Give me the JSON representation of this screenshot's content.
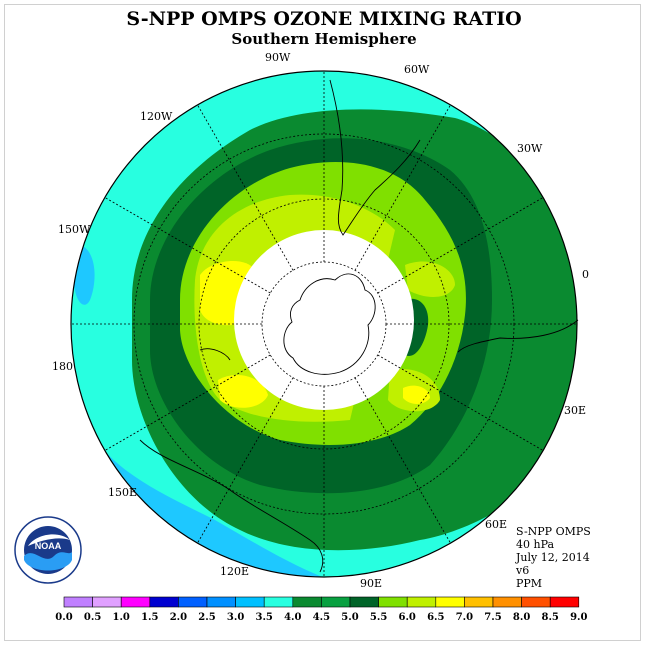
{
  "title": "S-NPP OMPS OZONE MIXING RATIO",
  "subtitle": "Southern Hemisphere",
  "longitude_labels": [
    {
      "id": "90w",
      "text": "90W"
    },
    {
      "id": "60w",
      "text": "60W"
    },
    {
      "id": "30w",
      "text": "30W"
    },
    {
      "id": "0",
      "text": "0"
    },
    {
      "id": "30e",
      "text": "30E"
    },
    {
      "id": "60e",
      "text": "60E"
    },
    {
      "id": "90e",
      "text": "90E"
    },
    {
      "id": "120e",
      "text": "120E"
    },
    {
      "id": "150e",
      "text": "150E"
    },
    {
      "id": "180",
      "text": "180"
    },
    {
      "id": "150w",
      "text": "150W"
    },
    {
      "id": "120w",
      "text": "120W"
    }
  ],
  "info": {
    "line1": "S-NPP OMPS",
    "line2": "40 hPa",
    "line3": "July 12, 2014",
    "line4": "v6",
    "line5": "PPM"
  },
  "logo_text": "NOAA",
  "colorbar": {
    "labels": [
      "0.0",
      "0.5",
      "1.0",
      "1.5",
      "2.0",
      "2.5",
      "3.0",
      "3.5",
      "4.0",
      "4.5",
      "5.0",
      "5.5",
      "6.0",
      "6.5",
      "7.0",
      "7.5",
      "8.0",
      "8.5",
      "9.0"
    ],
    "colors": [
      "#c080ff",
      "#e0a0ff",
      "#ff00ff",
      "#0000d0",
      "#0060ff",
      "#0090ff",
      "#00c0ff",
      "#28ffe0",
      "#0a8a30",
      "#08a040",
      "#006428",
      "#80e000",
      "#c0f000",
      "#ffff00",
      "#ffc000",
      "#ff9000",
      "#ff5000",
      "#ff0000",
      "#8b4513"
    ]
  },
  "colors": {
    "cyan": "#28ffe0",
    "light_blue": "#1ec8ff",
    "green": "#0a8a30",
    "dark_green": "#006428",
    "lime": "#80e000",
    "yellow_green": "#c0f000",
    "yellow": "#ffff00",
    "polar_night": "#ffffff"
  }
}
